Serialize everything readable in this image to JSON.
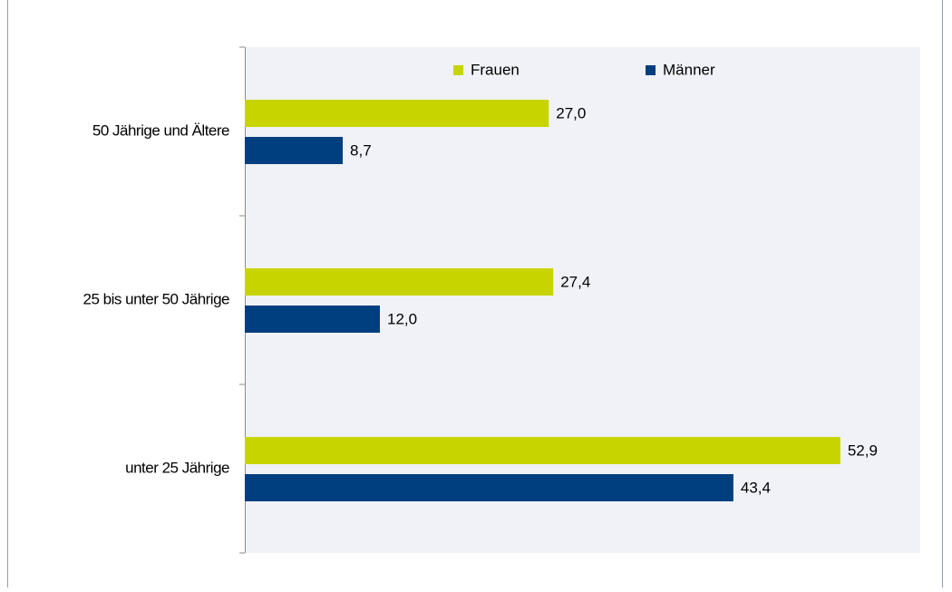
{
  "chart_data": {
    "type": "hbar",
    "categories": [
      "50 Jährige und Ältere",
      "25 bis unter 50 Jährige",
      "unter 25 Jährige"
    ],
    "series": [
      {
        "name": "Frauen",
        "color": "#c8d400",
        "values": [
          27.0,
          27.4,
          52.9
        ],
        "value_labels": [
          "27,0",
          "27,4",
          "52,9"
        ]
      },
      {
        "name": "Männer",
        "color": "#003f7f",
        "values": [
          8.7,
          12.0,
          43.4
        ],
        "value_labels": [
          "8,7",
          "12,0",
          "43,4"
        ]
      }
    ],
    "xlim": [
      0,
      60
    ],
    "legend": "top"
  }
}
